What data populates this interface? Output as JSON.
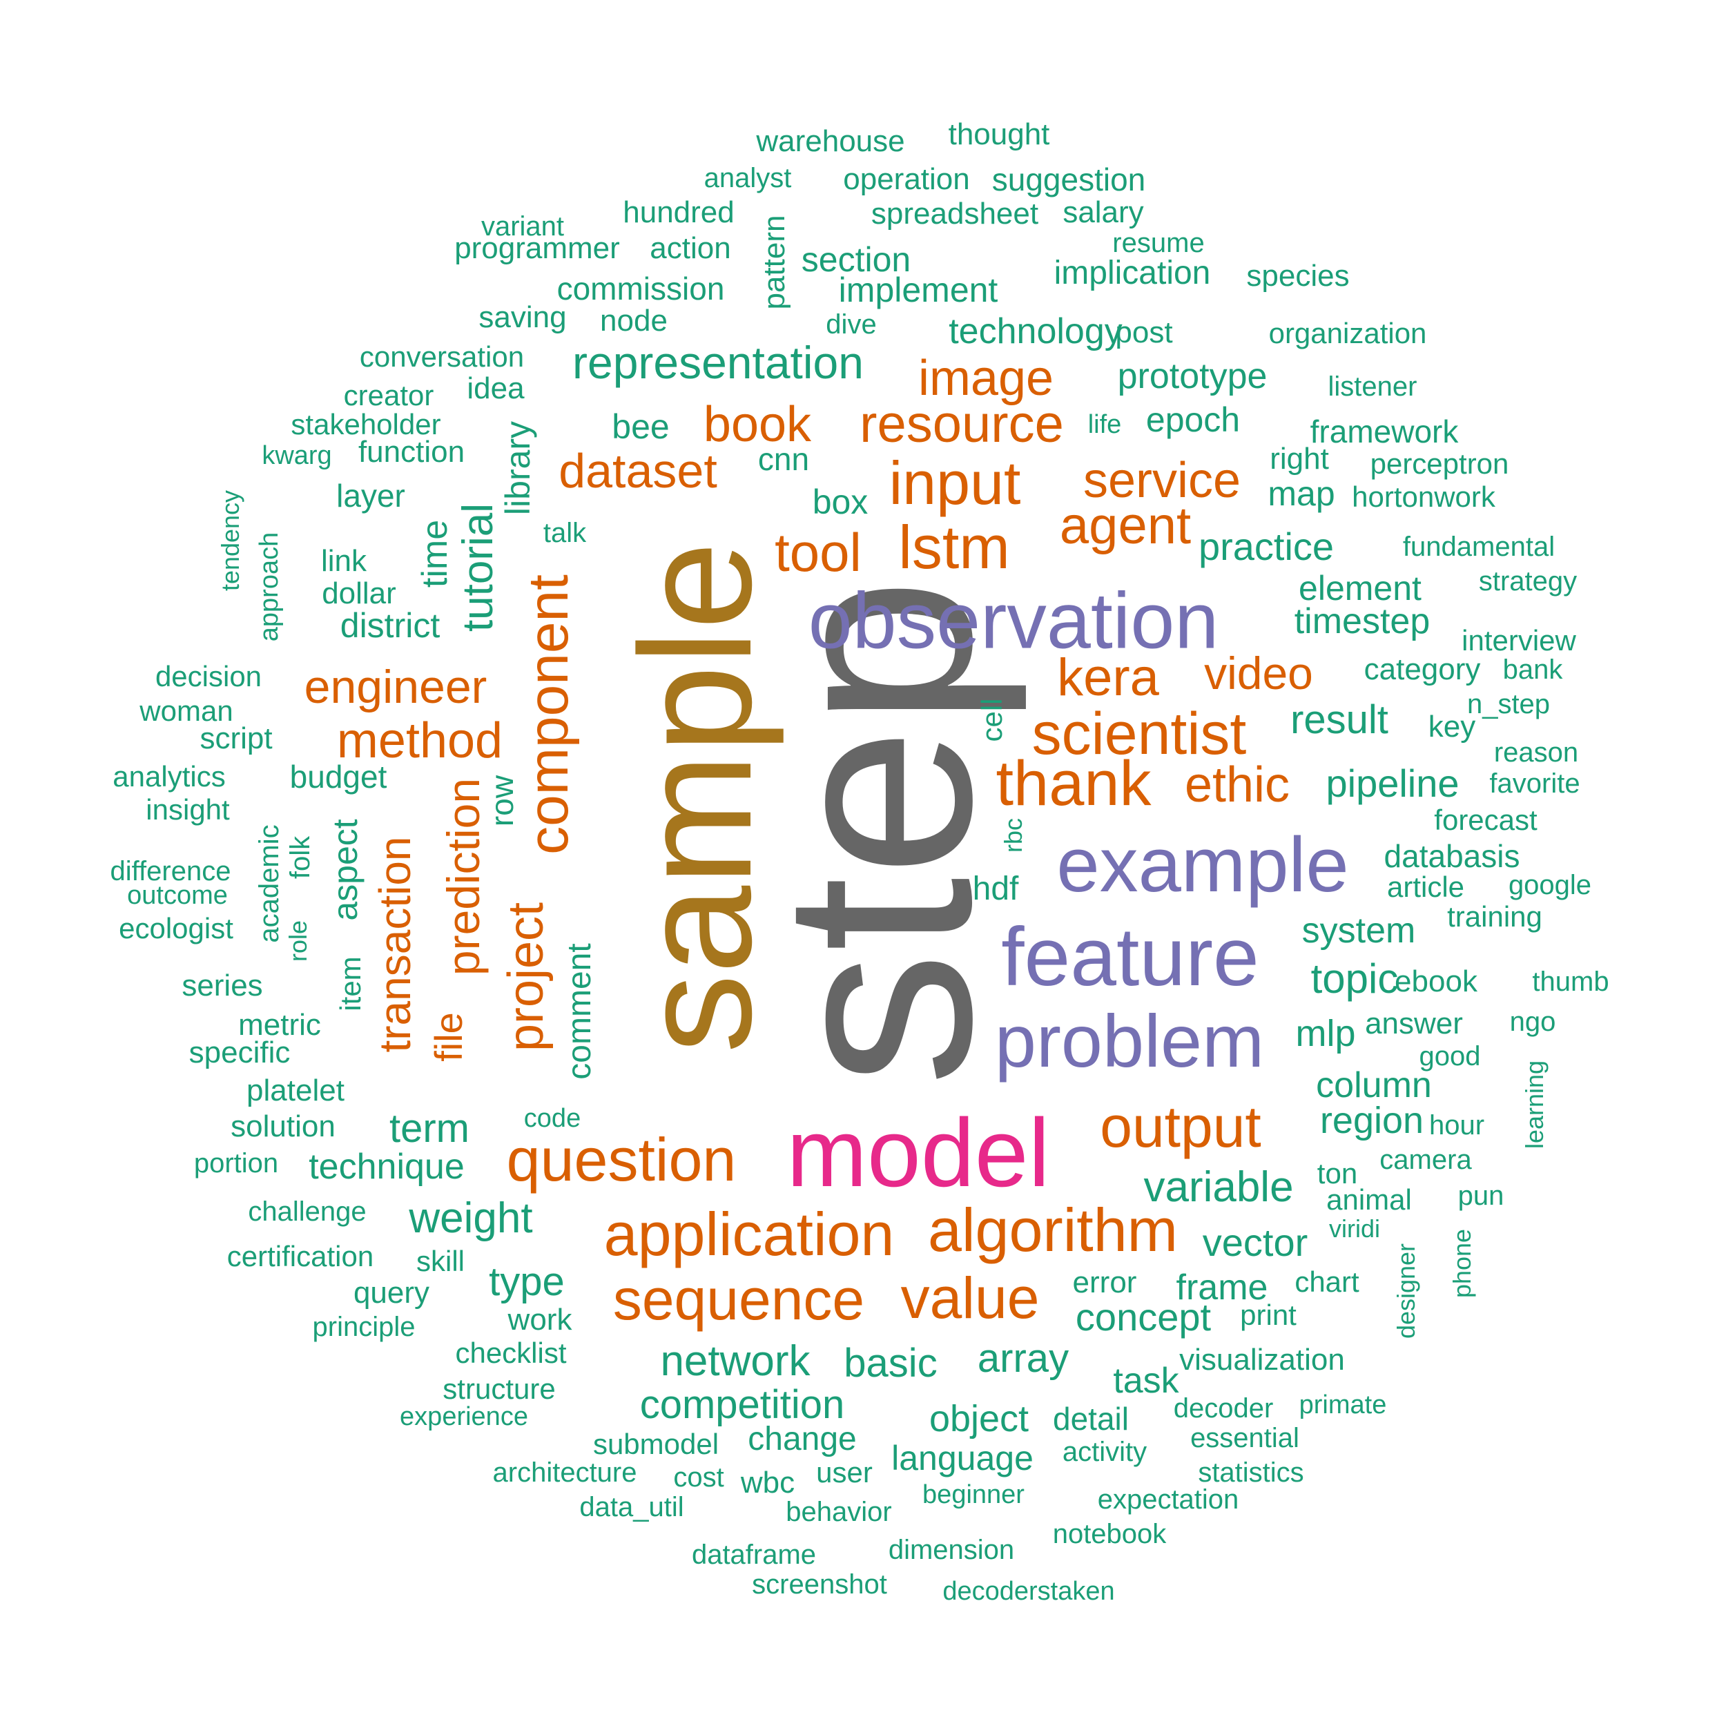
{
  "palette": {
    "green": "#1b9e77",
    "orange": "#d95f02",
    "purple": "#7570b3",
    "pink": "#e7298a",
    "olive": "#a6761d",
    "gray": "#666666"
  },
  "words": [
    {
      "text": "step",
      "color": "gray",
      "weight": 1
    },
    {
      "text": "sample",
      "color": "olive",
      "weight": 2
    },
    {
      "text": "model",
      "color": "pink",
      "weight": 3
    },
    {
      "text": "observation",
      "color": "purple",
      "weight": 4
    },
    {
      "text": "feature",
      "color": "purple",
      "weight": 4
    },
    {
      "text": "example",
      "color": "purple",
      "weight": 4
    },
    {
      "text": "problem",
      "color": "purple",
      "weight": 4
    },
    {
      "text": "application",
      "color": "orange",
      "weight": 5
    },
    {
      "text": "algorithm",
      "color": "orange",
      "weight": 5
    },
    {
      "text": "question",
      "color": "orange",
      "weight": 5
    },
    {
      "text": "sequence",
      "color": "orange",
      "weight": 5
    },
    {
      "text": "value",
      "color": "orange",
      "weight": 5
    },
    {
      "text": "thank",
      "color": "orange",
      "weight": 5
    },
    {
      "text": "scientist",
      "color": "orange",
      "weight": 5
    },
    {
      "text": "component",
      "color": "orange",
      "weight": 5
    },
    {
      "text": "input",
      "color": "orange",
      "weight": 5
    },
    {
      "text": "lstm",
      "color": "orange",
      "weight": 5
    },
    {
      "text": "output",
      "color": "orange",
      "weight": 5
    },
    {
      "text": "resource",
      "color": "orange",
      "weight": 5
    },
    {
      "text": "tool",
      "color": "orange",
      "weight": 5
    },
    {
      "text": "agent",
      "color": "orange",
      "weight": 5
    },
    {
      "text": "kera",
      "color": "orange",
      "weight": 5
    },
    {
      "text": "service",
      "color": "orange",
      "weight": 5
    },
    {
      "text": "image",
      "color": "orange",
      "weight": 5
    },
    {
      "text": "book",
      "color": "orange",
      "weight": 5
    },
    {
      "text": "dataset",
      "color": "orange",
      "weight": 5
    },
    {
      "text": "method",
      "color": "orange",
      "weight": 5
    },
    {
      "text": "engineer",
      "color": "orange",
      "weight": 5
    },
    {
      "text": "project",
      "color": "orange",
      "weight": 5
    },
    {
      "text": "prediction",
      "color": "orange",
      "weight": 5
    },
    {
      "text": "transaction",
      "color": "orange",
      "weight": 5
    },
    {
      "text": "video",
      "color": "orange",
      "weight": 5
    },
    {
      "text": "ethic",
      "color": "orange",
      "weight": 5
    },
    {
      "text": "file",
      "color": "orange",
      "weight": 5
    },
    {
      "text": "representation",
      "color": "green"
    },
    {
      "text": "network",
      "color": "green"
    },
    {
      "text": "competition",
      "color": "green"
    },
    {
      "text": "variable",
      "color": "green"
    },
    {
      "text": "weight",
      "color": "green"
    },
    {
      "text": "basic",
      "color": "green"
    },
    {
      "text": "array",
      "color": "green"
    },
    {
      "text": "concept",
      "color": "green"
    },
    {
      "text": "vector",
      "color": "green"
    },
    {
      "text": "type",
      "color": "green"
    },
    {
      "text": "term",
      "color": "green"
    },
    {
      "text": "technique",
      "color": "green"
    },
    {
      "text": "tutorial",
      "color": "green"
    },
    {
      "text": "pipeline",
      "color": "green"
    },
    {
      "text": "result",
      "color": "green"
    },
    {
      "text": "timestep",
      "color": "green"
    },
    {
      "text": "practice",
      "color": "green"
    },
    {
      "text": "topic",
      "color": "green"
    },
    {
      "text": "system",
      "color": "green"
    },
    {
      "text": "region",
      "color": "green"
    },
    {
      "text": "column",
      "color": "green"
    },
    {
      "text": "frame",
      "color": "green"
    },
    {
      "text": "object",
      "color": "green"
    },
    {
      "text": "language",
      "color": "green"
    },
    {
      "text": "technology",
      "color": "green"
    },
    {
      "text": "prototype",
      "color": "green"
    },
    {
      "text": "epoch",
      "color": "green"
    },
    {
      "text": "implement",
      "color": "green"
    },
    {
      "text": "section",
      "color": "green"
    },
    {
      "text": "spreadsheet",
      "color": "green"
    },
    {
      "text": "comment",
      "color": "green"
    },
    {
      "text": "element",
      "color": "green"
    },
    {
      "text": "databasis",
      "color": "green"
    },
    {
      "text": "district",
      "color": "green"
    },
    {
      "text": "aspect",
      "color": "green"
    },
    {
      "text": "time",
      "color": "green"
    },
    {
      "text": "library",
      "color": "green"
    },
    {
      "text": "budget",
      "color": "green"
    },
    {
      "text": "row",
      "color": "green"
    },
    {
      "text": "mlp",
      "color": "green"
    },
    {
      "text": "map",
      "color": "green"
    },
    {
      "text": "task",
      "color": "green"
    },
    {
      "text": "change",
      "color": "green"
    },
    {
      "text": "detail",
      "color": "green"
    },
    {
      "text": "bee",
      "color": "green"
    },
    {
      "text": "box",
      "color": "green"
    },
    {
      "text": "cnn",
      "color": "green"
    },
    {
      "text": "hdf",
      "color": "green"
    },
    {
      "text": "cell",
      "color": "green"
    },
    {
      "text": "rbc",
      "color": "green"
    },
    {
      "text": "item",
      "color": "green"
    },
    {
      "text": "commission",
      "color": "green"
    },
    {
      "text": "pattern",
      "color": "green"
    },
    {
      "text": "saving",
      "color": "green"
    },
    {
      "text": "node",
      "color": "green"
    },
    {
      "text": "dive",
      "color": "green"
    },
    {
      "text": "post",
      "color": "green"
    },
    {
      "text": "idea",
      "color": "green"
    },
    {
      "text": "function",
      "color": "green"
    },
    {
      "text": "layer",
      "color": "green"
    },
    {
      "text": "link",
      "color": "green"
    },
    {
      "text": "dollar",
      "color": "green"
    },
    {
      "text": "talk",
      "color": "green"
    },
    {
      "text": "script",
      "color": "green"
    },
    {
      "text": "implication",
      "color": "green"
    },
    {
      "text": "operation",
      "color": "green"
    },
    {
      "text": "suggestion",
      "color": "green"
    },
    {
      "text": "warehouse",
      "color": "green"
    },
    {
      "text": "thought",
      "color": "green"
    },
    {
      "text": "analyst",
      "color": "green"
    },
    {
      "text": "hundred",
      "color": "green"
    },
    {
      "text": "salary",
      "color": "green"
    },
    {
      "text": "variant",
      "color": "green"
    },
    {
      "text": "programmer",
      "color": "green"
    },
    {
      "text": "action",
      "color": "green"
    },
    {
      "text": "resume",
      "color": "green"
    },
    {
      "text": "species",
      "color": "green"
    },
    {
      "text": "organization",
      "color": "green"
    },
    {
      "text": "conversation",
      "color": "green"
    },
    {
      "text": "creator",
      "color": "green"
    },
    {
      "text": "listener",
      "color": "green"
    },
    {
      "text": "stakeholder",
      "color": "green"
    },
    {
      "text": "life",
      "color": "green"
    },
    {
      "text": "framework",
      "color": "green"
    },
    {
      "text": "kwarg",
      "color": "green"
    },
    {
      "text": "right",
      "color": "green"
    },
    {
      "text": "perceptron",
      "color": "green"
    },
    {
      "text": "hortonwork",
      "color": "green"
    },
    {
      "text": "tendency",
      "color": "green"
    },
    {
      "text": "approach",
      "color": "green"
    },
    {
      "text": "fundamental",
      "color": "green"
    },
    {
      "text": "strategy",
      "color": "green"
    },
    {
      "text": "interview",
      "color": "green"
    },
    {
      "text": "category",
      "color": "green"
    },
    {
      "text": "bank",
      "color": "green"
    },
    {
      "text": "decision",
      "color": "green"
    },
    {
      "text": "woman",
      "color": "green"
    },
    {
      "text": "key",
      "color": "green"
    },
    {
      "text": "n_step",
      "color": "green"
    },
    {
      "text": "reason",
      "color": "green"
    },
    {
      "text": "analytics",
      "color": "green"
    },
    {
      "text": "insight",
      "color": "green"
    },
    {
      "text": "favorite",
      "color": "green"
    },
    {
      "text": "forecast",
      "color": "green"
    },
    {
      "text": "academic",
      "color": "green"
    },
    {
      "text": "folk",
      "color": "green"
    },
    {
      "text": "difference",
      "color": "green"
    },
    {
      "text": "outcome",
      "color": "green"
    },
    {
      "text": "article",
      "color": "green"
    },
    {
      "text": "google",
      "color": "green"
    },
    {
      "text": "role",
      "color": "green"
    },
    {
      "text": "ecologist",
      "color": "green"
    },
    {
      "text": "training",
      "color": "green"
    },
    {
      "text": "series",
      "color": "green"
    },
    {
      "text": "ebook",
      "color": "green"
    },
    {
      "text": "thumb",
      "color": "green"
    },
    {
      "text": "metric",
      "color": "green"
    },
    {
      "text": "answer",
      "color": "green"
    },
    {
      "text": "ngo",
      "color": "green"
    },
    {
      "text": "specific",
      "color": "green"
    },
    {
      "text": "good",
      "color": "green"
    },
    {
      "text": "platelet",
      "color": "green"
    },
    {
      "text": "learning",
      "color": "green"
    },
    {
      "text": "solution",
      "color": "green"
    },
    {
      "text": "code",
      "color": "green"
    },
    {
      "text": "hour",
      "color": "green"
    },
    {
      "text": "portion",
      "color": "green"
    },
    {
      "text": "camera",
      "color": "green"
    },
    {
      "text": "ton",
      "color": "green"
    },
    {
      "text": "animal",
      "color": "green"
    },
    {
      "text": "pun",
      "color": "green"
    },
    {
      "text": "challenge",
      "color": "green"
    },
    {
      "text": "viridi",
      "color": "green"
    },
    {
      "text": "designer",
      "color": "green"
    },
    {
      "text": "phone",
      "color": "green"
    },
    {
      "text": "certification",
      "color": "green"
    },
    {
      "text": "skill",
      "color": "green"
    },
    {
      "text": "error",
      "color": "green"
    },
    {
      "text": "chart",
      "color": "green"
    },
    {
      "text": "query",
      "color": "green"
    },
    {
      "text": "work",
      "color": "green"
    },
    {
      "text": "print",
      "color": "green"
    },
    {
      "text": "principle",
      "color": "green"
    },
    {
      "text": "checklist",
      "color": "green"
    },
    {
      "text": "visualization",
      "color": "green"
    },
    {
      "text": "structure",
      "color": "green"
    },
    {
      "text": "decoder",
      "color": "green"
    },
    {
      "text": "primate",
      "color": "green"
    },
    {
      "text": "experience",
      "color": "green"
    },
    {
      "text": "essential",
      "color": "green"
    },
    {
      "text": "submodel",
      "color": "green"
    },
    {
      "text": "activity",
      "color": "green"
    },
    {
      "text": "architecture",
      "color": "green"
    },
    {
      "text": "cost",
      "color": "green"
    },
    {
      "text": "wbc",
      "color": "green"
    },
    {
      "text": "user",
      "color": "green"
    },
    {
      "text": "statistics",
      "color": "green"
    },
    {
      "text": "data_util",
      "color": "green"
    },
    {
      "text": "behavior",
      "color": "green"
    },
    {
      "text": "beginner",
      "color": "green"
    },
    {
      "text": "expectation",
      "color": "green"
    },
    {
      "text": "notebook",
      "color": "green"
    },
    {
      "text": "dataframe",
      "color": "green"
    },
    {
      "text": "dimension",
      "color": "green"
    },
    {
      "text": "screenshot",
      "color": "green"
    },
    {
      "text": "decoderstaken",
      "color": "green"
    }
  ]
}
